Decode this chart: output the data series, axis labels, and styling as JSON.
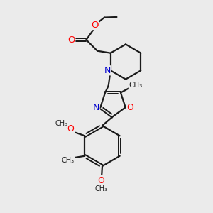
{
  "bg_color": "#ebebeb",
  "bond_color": "#1a1a1a",
  "O_color": "#ff0000",
  "N_color": "#0000cd",
  "line_width": 1.6,
  "font_size": 8.5,
  "figsize": [
    3.0,
    3.0
  ],
  "dpi": 100,
  "xlim": [
    0,
    10
  ],
  "ylim": [
    0,
    10
  ]
}
